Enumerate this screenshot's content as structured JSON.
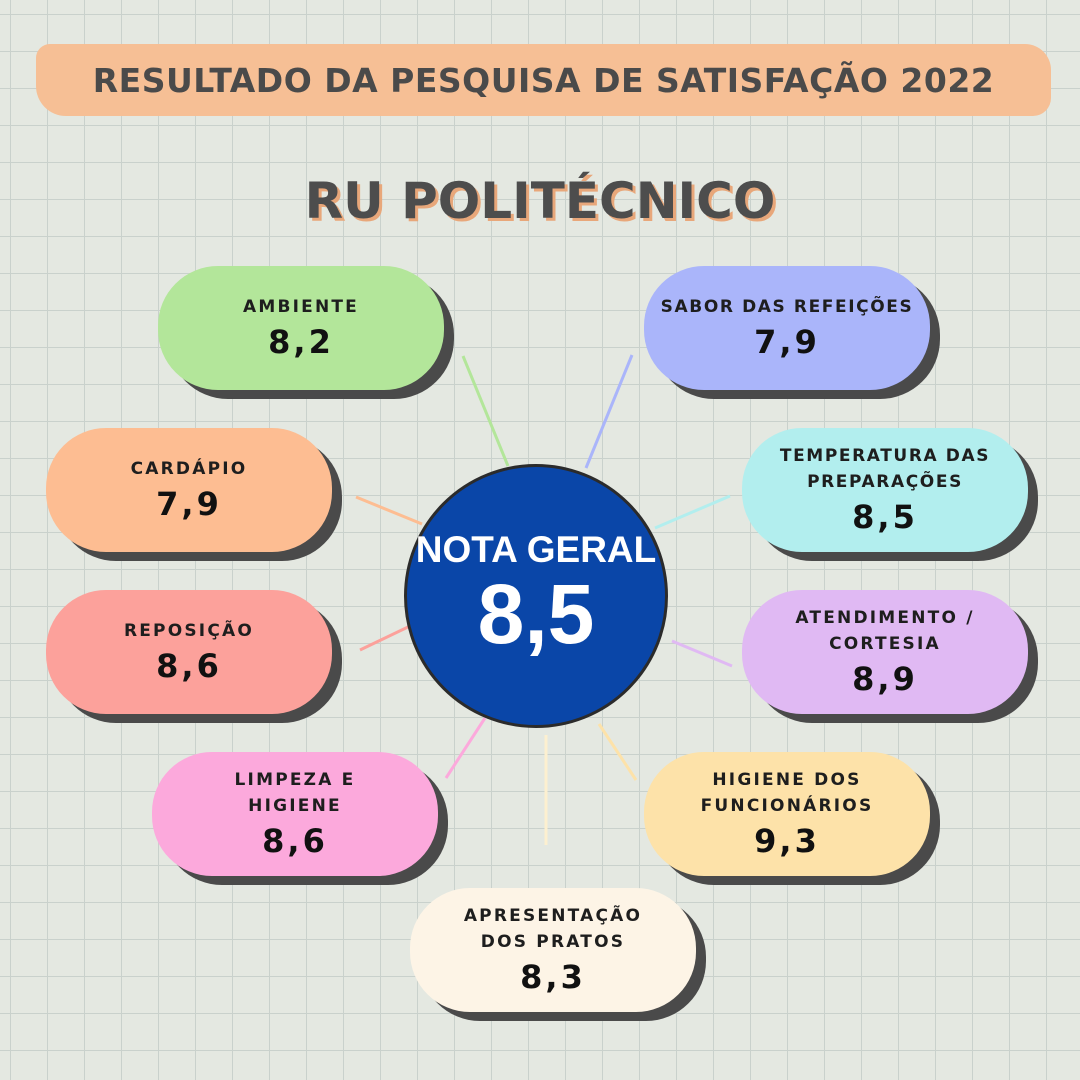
{
  "header": {
    "title": "RESULTADO DA PESQUISA DE SATISFAÇÃO 2022",
    "subtitle": "RU POLITÉCNICO",
    "banner_color": "#f6bf95"
  },
  "overall": {
    "label": "NOTA GERAL",
    "value": "8,5",
    "color": "#0a46a8"
  },
  "categories": [
    {
      "label": "AMBIENTE",
      "value": "8,2",
      "color": "#b3e69a"
    },
    {
      "label": "SABOR DAS REFEIÇÕES",
      "value": "7,9",
      "color": "#aab5fa"
    },
    {
      "label": "CARDÁPIO",
      "value": "7,9",
      "color": "#fdbd92"
    },
    {
      "label": "TEMPERATURA DAS\nPREPARAÇÕES",
      "value": "8,5",
      "color": "#b2eeee"
    },
    {
      "label": "REPOSIÇÃO",
      "value": "8,6",
      "color": "#fca19b"
    },
    {
      "label": "ATENDIMENTO /\nCORTESIA",
      "value": "8,9",
      "color": "#e0b9f3"
    },
    {
      "label": "LIMPEZA E\nHIGIENE",
      "value": "8,6",
      "color": "#fca9dc"
    },
    {
      "label": "HIGIENE DOS\nFUNCIONÁRIOS",
      "value": "9,3",
      "color": "#fde2a9"
    },
    {
      "label": "APRESENTAÇÃO\nDOS PRATOS",
      "value": "8,3",
      "color": "#fdf4e6"
    }
  ]
}
